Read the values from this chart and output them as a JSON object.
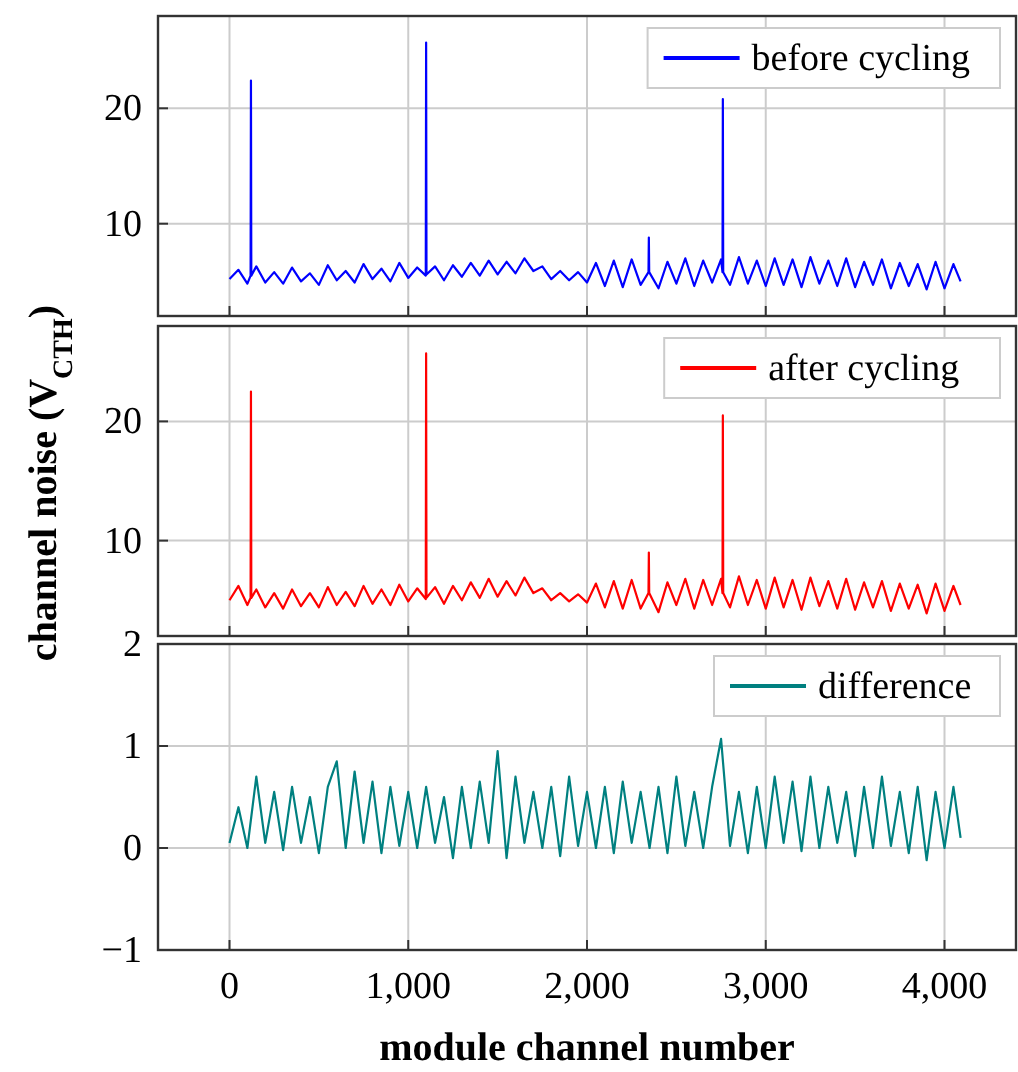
{
  "chart_data": [
    {
      "type": "line",
      "xlim": [
        -400,
        4400
      ],
      "xticks": [
        {
          "value": 0,
          "label": null
        },
        {
          "value": 1000,
          "label": null
        },
        {
          "value": 2000,
          "label": null
        },
        {
          "value": 3000,
          "label": null
        },
        {
          "value": 4000,
          "label": null
        }
      ],
      "ylim": [
        2,
        28
      ],
      "yticks": [
        10,
        20
      ],
      "grid": true,
      "legend": "top right",
      "tick_labels": "y",
      "x": [
        0,
        50,
        100,
        118,
        120,
        122,
        150,
        200,
        250,
        300,
        350,
        400,
        450,
        500,
        550,
        600,
        650,
        700,
        750,
        800,
        850,
        900,
        950,
        1000,
        1050,
        1098,
        1100,
        1102,
        1150,
        1200,
        1250,
        1300,
        1350,
        1400,
        1450,
        1500,
        1550,
        1600,
        1650,
        1700,
        1750,
        1800,
        1850,
        1900,
        1950,
        2000,
        2050,
        2100,
        2150,
        2200,
        2250,
        2300,
        2344,
        2346,
        2348,
        2400,
        2450,
        2500,
        2550,
        2600,
        2650,
        2700,
        2750,
        2758,
        2760,
        2762,
        2800,
        2850,
        2900,
        2950,
        3000,
        3050,
        3100,
        3150,
        3200,
        3250,
        3300,
        3350,
        3400,
        3450,
        3500,
        3550,
        3600,
        3650,
        3700,
        3750,
        3800,
        3850,
        3900,
        3950,
        4000,
        4050,
        4090
      ],
      "series": [
        {
          "name": "before cycling",
          "color": "#0000ff",
          "values": [
            5.2,
            6.0,
            4.8,
            5.5,
            22.4,
            5.5,
            6.3,
            4.9,
            5.8,
            4.8,
            6.2,
            5.0,
            5.7,
            4.7,
            6.4,
            5.1,
            5.9,
            4.9,
            6.5,
            5.2,
            6.1,
            5.0,
            6.6,
            5.3,
            6.2,
            5.5,
            25.7,
            5.6,
            6.3,
            5.1,
            6.4,
            5.4,
            6.6,
            5.5,
            6.8,
            5.6,
            6.7,
            5.7,
            7.0,
            5.9,
            6.3,
            5.2,
            5.9,
            5.1,
            5.8,
            4.9,
            6.6,
            4.6,
            6.8,
            4.5,
            6.9,
            4.7,
            5.8,
            8.8,
            5.8,
            4.4,
            6.7,
            4.8,
            7.0,
            4.6,
            6.8,
            4.9,
            6.9,
            5.8,
            20.8,
            5.8,
            4.7,
            7.1,
            4.8,
            6.8,
            4.6,
            7.0,
            4.7,
            6.9,
            4.5,
            7.1,
            4.8,
            6.8,
            4.6,
            7.0,
            4.5,
            6.7,
            4.7,
            6.9,
            4.4,
            6.6,
            4.6,
            6.5,
            4.3,
            6.7,
            4.4,
            6.5,
            5.0
          ]
        }
      ]
    },
    {
      "type": "line",
      "xlim": [
        -400,
        4400
      ],
      "xticks": [
        {
          "value": 0,
          "label": null
        },
        {
          "value": 1000,
          "label": null
        },
        {
          "value": 2000,
          "label": null
        },
        {
          "value": 3000,
          "label": null
        },
        {
          "value": 4000,
          "label": null
        }
      ],
      "ylim": [
        2,
        28
      ],
      "yticks": [
        10,
        20
      ],
      "grid": true,
      "legend": "top right",
      "tick_labels": "y",
      "ylabel": "channel noise (V$_{CTH}$)",
      "x": [
        0,
        50,
        100,
        118,
        120,
        122,
        150,
        200,
        250,
        300,
        350,
        400,
        450,
        500,
        550,
        600,
        650,
        700,
        750,
        800,
        850,
        900,
        950,
        1000,
        1050,
        1098,
        1100,
        1102,
        1150,
        1200,
        1250,
        1300,
        1350,
        1400,
        1450,
        1500,
        1550,
        1600,
        1650,
        1700,
        1750,
        1800,
        1850,
        1900,
        1950,
        2000,
        2050,
        2100,
        2150,
        2200,
        2250,
        2300,
        2344,
        2346,
        2348,
        2400,
        2450,
        2500,
        2550,
        2600,
        2650,
        2700,
        2750,
        2758,
        2760,
        2762,
        2800,
        2850,
        2900,
        2950,
        3000,
        3050,
        3100,
        3150,
        3200,
        3250,
        3300,
        3350,
        3400,
        3450,
        3500,
        3550,
        3600,
        3650,
        3700,
        3750,
        3800,
        3850,
        3900,
        3950,
        4000,
        4050,
        4090
      ],
      "series": [
        {
          "name": "after cycling",
          "color": "#ff0000",
          "values": [
            5.0,
            6.2,
            4.6,
            5.2,
            22.5,
            5.2,
            5.9,
            4.4,
            5.6,
            4.3,
            5.9,
            4.5,
            5.6,
            4.4,
            6.1,
            4.6,
            5.7,
            4.5,
            6.2,
            4.7,
            5.9,
            4.6,
            6.3,
            4.9,
            6.0,
            5.1,
            25.7,
            5.2,
            6.1,
            4.7,
            6.2,
            5.0,
            6.5,
            5.2,
            6.8,
            5.3,
            6.6,
            5.4,
            6.9,
            5.6,
            6.0,
            5.0,
            5.6,
            4.9,
            5.5,
            4.8,
            6.4,
            4.4,
            6.6,
            4.3,
            6.7,
            4.3,
            5.6,
            9.0,
            5.6,
            4.0,
            6.5,
            4.6,
            6.8,
            4.3,
            6.7,
            4.6,
            6.8,
            5.6,
            20.5,
            5.6,
            4.4,
            7.0,
            4.6,
            6.7,
            4.3,
            6.9,
            4.4,
            6.7,
            4.2,
            6.9,
            4.5,
            6.6,
            4.3,
            6.8,
            4.2,
            6.5,
            4.4,
            6.6,
            4.1,
            6.4,
            4.3,
            6.3,
            3.9,
            6.4,
            4.1,
            6.2,
            4.6
          ]
        }
      ]
    },
    {
      "type": "line",
      "xlim": [
        -400,
        4400
      ],
      "xticks": [
        {
          "value": 0,
          "label": "0"
        },
        {
          "value": 1000,
          "label": "1,000"
        },
        {
          "value": 2000,
          "label": "2,000"
        },
        {
          "value": 3000,
          "label": "3,000"
        },
        {
          "value": 4000,
          "label": "4,000"
        }
      ],
      "ylim": [
        -1,
        2
      ],
      "yticks": [
        {
          "value": -1,
          "label": "−1"
        },
        0,
        1,
        2
      ],
      "grid": true,
      "legend": "top right",
      "xlabel": "module channel number",
      "x": [
        0,
        50,
        100,
        150,
        200,
        250,
        300,
        350,
        400,
        450,
        500,
        550,
        600,
        650,
        700,
        750,
        800,
        850,
        900,
        950,
        1000,
        1050,
        1100,
        1150,
        1200,
        1250,
        1300,
        1350,
        1400,
        1450,
        1500,
        1550,
        1600,
        1650,
        1700,
        1750,
        1800,
        1850,
        1900,
        1950,
        2000,
        2050,
        2100,
        2150,
        2200,
        2250,
        2300,
        2350,
        2400,
        2450,
        2500,
        2550,
        2600,
        2650,
        2700,
        2750,
        2800,
        2850,
        2900,
        2950,
        3000,
        3050,
        3100,
        3150,
        3200,
        3250,
        3300,
        3350,
        3400,
        3450,
        3500,
        3550,
        3600,
        3650,
        3700,
        3750,
        3800,
        3850,
        3900,
        3950,
        4000,
        4050,
        4090
      ],
      "series": [
        {
          "name": "difference",
          "color": "#008080",
          "values": [
            0.05,
            0.4,
            0.0,
            0.7,
            0.05,
            0.55,
            -0.02,
            0.6,
            0.05,
            0.5,
            -0.05,
            0.6,
            0.85,
            0.0,
            0.75,
            0.05,
            0.65,
            -0.05,
            0.6,
            0.02,
            0.55,
            0.0,
            0.6,
            0.05,
            0.5,
            -0.1,
            0.6,
            0.0,
            0.65,
            0.05,
            0.95,
            -0.1,
            0.7,
            0.05,
            0.55,
            0.0,
            0.6,
            -0.08,
            0.7,
            0.02,
            0.55,
            0.0,
            0.6,
            -0.05,
            0.65,
            0.05,
            0.55,
            0.0,
            0.6,
            -0.05,
            0.7,
            0.02,
            0.55,
            0.0,
            0.6,
            1.07,
            0.02,
            0.55,
            -0.05,
            0.6,
            0.0,
            0.7,
            0.05,
            0.65,
            -0.03,
            0.7,
            0.0,
            0.6,
            0.05,
            0.55,
            -0.08,
            0.6,
            0.0,
            0.7,
            0.02,
            0.55,
            -0.05,
            0.6,
            -0.12,
            0.55,
            0.0,
            0.6,
            0.1
          ]
        }
      ]
    }
  ]
}
